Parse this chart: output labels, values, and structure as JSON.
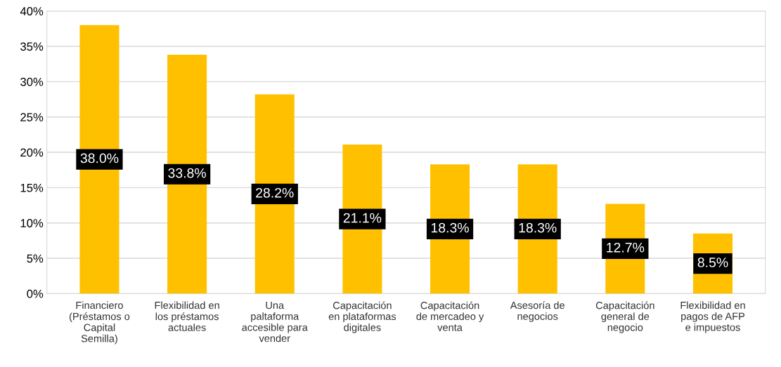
{
  "chart_data": {
    "type": "bar",
    "categories": [
      "Financiero\n(Préstamos o\nCapital\nSemilla)",
      "Flexibilidad en\nlos préstamos\nactuales",
      "Una\npaltaforma\naccesible para\nvender",
      "Capacitación\nen plataformas\ndigitales",
      "Capacitación\nde mercadeo y\nventa",
      "Asesoría de\nnegocios",
      "Capacitación\ngeneral de\nnegocio",
      "Flexibilidad en\npagos de AFP\ne impuestos"
    ],
    "values": [
      38.0,
      33.8,
      28.2,
      21.1,
      18.3,
      18.3,
      12.7,
      8.5
    ],
    "value_labels": [
      "38.0%",
      "33.8%",
      "28.2%",
      "21.1%",
      "18.3%",
      "18.3%",
      "12.7%",
      "8.5%"
    ],
    "color": "#ffc000",
    "ylim": [
      0,
      40
    ],
    "yticks": [
      {
        "value": 0,
        "label": "0%"
      },
      {
        "value": 5,
        "label": "5%"
      },
      {
        "value": 10,
        "label": "10%"
      },
      {
        "value": 15,
        "label": "15%"
      },
      {
        "value": 20,
        "label": "20%"
      },
      {
        "value": 25,
        "label": "25%"
      },
      {
        "value": 30,
        "label": "30%"
      },
      {
        "value": 35,
        "label": "35%"
      },
      {
        "value": 40,
        "label": "40%"
      }
    ],
    "grid": "y",
    "legend": false
  }
}
